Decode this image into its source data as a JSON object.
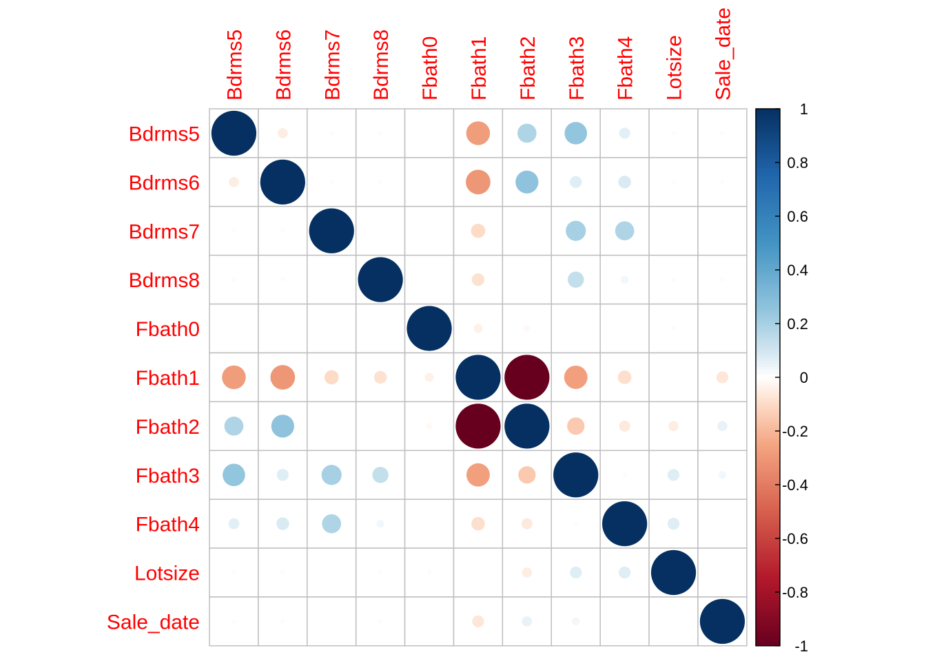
{
  "chart_data": {
    "type": "heatmap",
    "subtype": "correlation-circles",
    "variables": [
      "Bdrms5",
      "Bdrms6",
      "Bdrms7",
      "Bdrms8",
      "Fbath0",
      "Fbath1",
      "Fbath2",
      "Fbath3",
      "Fbath4",
      "Lotsize",
      "Sale_date"
    ],
    "matrix": [
      [
        1.0,
        -0.05,
        -0.01,
        -0.01,
        0.0,
        -0.28,
        0.18,
        0.25,
        0.06,
        0.01,
        0.01
      ],
      [
        -0.05,
        1.0,
        -0.01,
        -0.01,
        0.0,
        -0.3,
        0.26,
        0.07,
        0.08,
        0.01,
        0.01
      ],
      [
        -0.01,
        -0.01,
        1.0,
        0.0,
        0.0,
        -0.1,
        0.0,
        0.2,
        0.18,
        0.0,
        0.0
      ],
      [
        -0.01,
        -0.01,
        0.0,
        1.0,
        0.0,
        -0.08,
        0.0,
        0.13,
        0.03,
        0.01,
        0.01
      ],
      [
        0.0,
        0.0,
        0.0,
        0.0,
        1.0,
        -0.04,
        -0.02,
        0.0,
        0.0,
        -0.01,
        0.0
      ],
      [
        -0.28,
        -0.3,
        -0.1,
        -0.08,
        -0.04,
        1.0,
        -1.0,
        -0.27,
        -0.09,
        0.0,
        -0.07
      ],
      [
        0.18,
        0.26,
        0.0,
        0.0,
        -0.02,
        -1.0,
        1.0,
        -0.15,
        -0.06,
        -0.05,
        0.05
      ],
      [
        0.25,
        0.07,
        0.2,
        0.13,
        0.0,
        -0.27,
        -0.15,
        1.0,
        -0.01,
        0.07,
        0.03
      ],
      [
        0.06,
        0.08,
        0.18,
        0.03,
        0.0,
        -0.09,
        -0.06,
        -0.01,
        1.0,
        0.07,
        0.0
      ],
      [
        0.01,
        0.01,
        0.0,
        0.01,
        -0.01,
        0.0,
        -0.05,
        0.07,
        0.07,
        1.0,
        0.0
      ],
      [
        0.01,
        0.01,
        0.0,
        0.01,
        0.0,
        -0.07,
        0.05,
        0.03,
        0.0,
        0.0,
        1.0
      ]
    ],
    "colorbar": {
      "range": [
        -1,
        1
      ],
      "ticks": [
        1,
        0.8,
        0.6,
        0.4,
        0.2,
        0,
        -0.2,
        -0.4,
        -0.6,
        -0.8,
        -1
      ],
      "tick_labels": [
        "1",
        "0.8",
        "0.6",
        "0.4",
        "0.2",
        "0",
        "-0.2",
        "-0.4",
        "-0.6",
        "-0.8",
        "-1"
      ],
      "placement": "right"
    },
    "colors": {
      "negative_end": "#67001F",
      "neutral": "#FFFFFF",
      "positive_end": "#053061",
      "label_color": "#FF0000",
      "grid_color": "#BEBEBE"
    },
    "grid": true,
    "title": "",
    "xlabel": "",
    "ylabel": ""
  }
}
